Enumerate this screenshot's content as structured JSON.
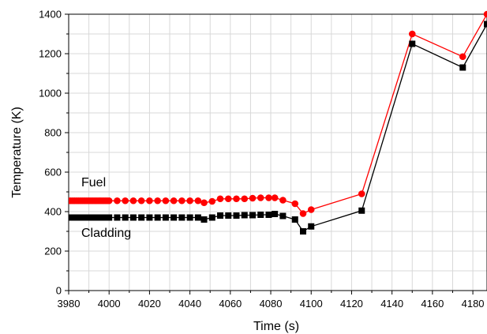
{
  "chart_data": {
    "type": "line",
    "xlabel": "Time (s)",
    "ylabel": "Temperature (K)",
    "xlim": [
      3980,
      4187
    ],
    "ylim": [
      0,
      1400
    ],
    "xticks": [
      3980,
      4000,
      4020,
      4040,
      4060,
      4080,
      4100,
      4120,
      4140,
      4160,
      4180
    ],
    "yticks": [
      0,
      200,
      400,
      600,
      800,
      1000,
      1200,
      1400
    ],
    "grid": true,
    "series": [
      {
        "name": "Fuel",
        "color": "#ff0000",
        "marker": "circle",
        "x": [
          3980,
          3981,
          3982,
          3983,
          3984,
          3985,
          3986,
          3987,
          3988,
          3989,
          3990,
          3991,
          3992,
          3993,
          3994,
          3995,
          3996,
          3997,
          3998,
          3999,
          4000,
          4004,
          4008,
          4012,
          4016,
          4020,
          4024,
          4028,
          4032,
          4036,
          4040,
          4044,
          4047,
          4051,
          4055,
          4059,
          4063,
          4067,
          4071,
          4075,
          4079,
          4082,
          4086,
          4092,
          4096,
          4100,
          4125,
          4150,
          4175,
          4187
        ],
        "y": [
          455,
          455,
          455,
          455,
          455,
          455,
          455,
          455,
          455,
          455,
          455,
          455,
          455,
          455,
          455,
          455,
          455,
          455,
          455,
          455,
          455,
          455,
          455,
          455,
          455,
          455,
          455,
          455,
          455,
          455,
          455,
          455,
          445,
          452,
          465,
          465,
          465,
          465,
          468,
          470,
          470,
          470,
          458,
          440,
          390,
          410,
          490,
          1300,
          1185,
          1400
        ]
      },
      {
        "name": "Cladding",
        "color": "#000000",
        "marker": "square",
        "x": [
          3980,
          3981,
          3982,
          3983,
          3984,
          3985,
          3986,
          3987,
          3988,
          3989,
          3990,
          3991,
          3992,
          3993,
          3994,
          3995,
          3996,
          3997,
          3998,
          3999,
          4000,
          4004,
          4008,
          4012,
          4016,
          4020,
          4024,
          4028,
          4032,
          4036,
          4040,
          4044,
          4047,
          4051,
          4055,
          4059,
          4063,
          4067,
          4071,
          4075,
          4079,
          4082,
          4086,
          4092,
          4096,
          4100,
          4125,
          4150,
          4175,
          4187
        ],
        "y": [
          370,
          370,
          370,
          370,
          370,
          370,
          370,
          370,
          370,
          370,
          370,
          370,
          370,
          370,
          370,
          370,
          370,
          370,
          370,
          370,
          370,
          370,
          370,
          370,
          370,
          370,
          370,
          370,
          370,
          370,
          370,
          370,
          360,
          370,
          380,
          380,
          380,
          382,
          382,
          384,
          384,
          388,
          378,
          360,
          300,
          325,
          405,
          1250,
          1130,
          1350
        ]
      }
    ]
  }
}
